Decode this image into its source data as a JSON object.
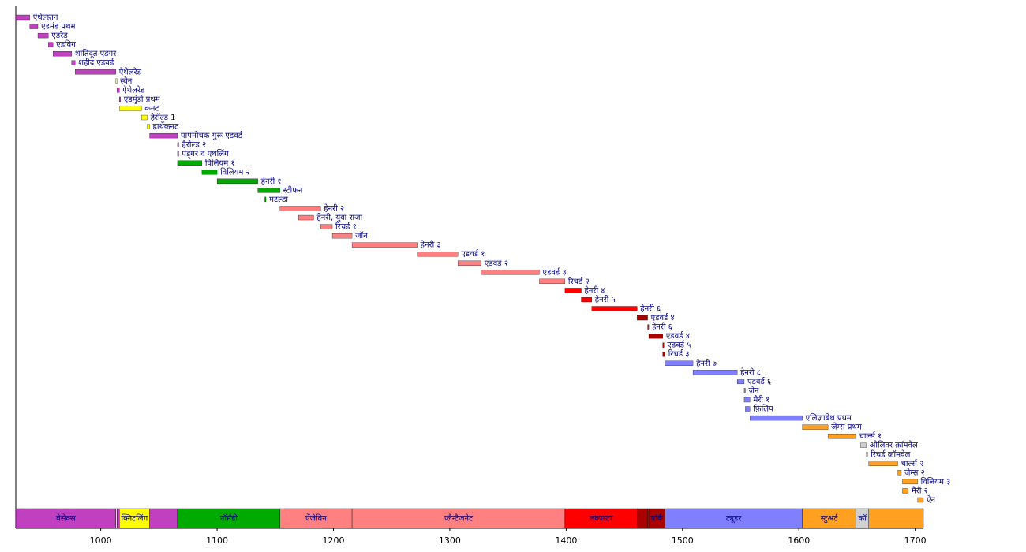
{
  "chart_data": {
    "type": "timeline",
    "xlim": [
      927,
      1707
    ],
    "xticks": [
      1000,
      1100,
      1200,
      1300,
      1400,
      1500,
      1600,
      1700
    ],
    "categories": [
      "ऐथेल्स्तन",
      "एडमंड प्रथम",
      "एडरेड",
      "एडविग",
      "शांतिदूत एडगर",
      "शहीद एडवर्ड",
      "ऐथेलरेड",
      "स्वेन",
      "ऐथेलरेड",
      "एडमुंडो प्रथम",
      "कनट",
      "हेरॉल्ड 1",
      "हार्थेकनट",
      "पापमोचक गुरू एडवर्ड",
      "हैरोल्ड २",
      "एड्गर द एथलिंग",
      "विलियम १",
      "विलियम २",
      "हेनरी १",
      "स्टीफन",
      "मटल्डा",
      "हेनरी २",
      "हेनरी, युवा राजा",
      "रिचर्ड १",
      "जॉन",
      "हेनरी ३",
      "एडवर्ड १",
      "एडवर्ड २",
      "एडवर्ड ३",
      "रिचर्ड २",
      "हेनरी ४",
      "हेनरी ५",
      "हेनरी ६",
      "एडवर्ड ४",
      "हेनरी ६",
      "एडवर्ड ४",
      "एडवर्ड ५",
      "रिचर्ड ३",
      "हेनरी ७",
      "हेनरी ८",
      "एडवर्ड ६",
      "जेन",
      "मैरी १",
      "फ़िलिप",
      "एलिज़ाबेथ प्रथम",
      "जेम्स प्रथम",
      "चार्ल्स १",
      "ओलिवर क्रॉमवेल",
      "रिचर्ड क्रॉमवेल",
      "चार्ल्स २",
      "जेम्स २",
      "विलियम ३",
      "मैरी २",
      "ऐन"
    ],
    "starts": [
      927,
      939,
      946,
      955,
      959,
      975,
      978,
      1013,
      1014,
      1016,
      1016,
      1035,
      1040,
      1042,
      1066,
      1066,
      1066,
      1087,
      1100,
      1135,
      1141,
      1154,
      1170,
      1189,
      1199,
      1216,
      1272,
      1307,
      1327,
      1377,
      1399,
      1413,
      1422,
      1461,
      1470,
      1471,
      1483,
      1483,
      1485,
      1509,
      1547,
      1553,
      1553,
      1554,
      1558,
      1603,
      1625,
      1653,
      1658,
      1660,
      1685,
      1689,
      1689,
      1702
    ],
    "ends": [
      939,
      946,
      955,
      959,
      975,
      978,
      1013,
      1014,
      1016,
      1016,
      1035,
      1040,
      1042,
      1066,
      1066,
      1066,
      1087,
      1100,
      1135,
      1154,
      1141,
      1189,
      1183,
      1199,
      1216,
      1272,
      1307,
      1327,
      1377,
      1399,
      1413,
      1422,
      1461,
      1470,
      1471,
      1483,
      1483,
      1485,
      1509,
      1547,
      1553,
      1553,
      1558,
      1558,
      1603,
      1625,
      1649,
      1658,
      1659,
      1685,
      1688,
      1702,
      1694,
      1707
    ],
    "colors": [
      "#c040c0",
      "#c040c0",
      "#c040c0",
      "#c040c0",
      "#c040c0",
      "#c040c0",
      "#c040c0",
      "#ffff00",
      "#c040c0",
      "#c040c0",
      "#ffff00",
      "#ffff00",
      "#ffff00",
      "#c040c0",
      "#c040c0",
      "#c040c0",
      "#00aa00",
      "#00aa00",
      "#00aa00",
      "#00aa00",
      "#00aa00",
      "#ff8080",
      "#ff8080",
      "#ff8080",
      "#ff8080",
      "#ff8080",
      "#ff8080",
      "#ff8080",
      "#ff8080",
      "#ff8080",
      "#ff0000",
      "#ff0000",
      "#ff0000",
      "#aa0000",
      "#ff0000",
      "#aa0000",
      "#aa0000",
      "#aa0000",
      "#8080ff",
      "#8080ff",
      "#8080ff",
      "#8080ff",
      "#8080ff",
      "#8080ff",
      "#8080ff",
      "#ffa020",
      "#ffa020",
      "#d0d0d0",
      "#d0d0d0",
      "#ffa020",
      "#ffa020",
      "#ffa020",
      "#ffa020",
      "#ffa020"
    ],
    "houses": {
      "names": [
        "वेसेक्स",
        null,
        null,
        "क्निटलिंग",
        null,
        "नॉर्मंडी",
        "ऐंजेविन",
        "प्लैन्टैजनेट",
        "लंकास्टर",
        null,
        null,
        "यॉर्क",
        "ट्यूडर",
        "स्टुअर्ट",
        "कॉ",
        null
      ],
      "starts": [
        927,
        1013,
        1014,
        1016,
        1042,
        1066,
        1154,
        1216,
        1399,
        1461,
        1470,
        1471,
        1485,
        1603,
        1649,
        1660
      ],
      "ends": [
        1013,
        1014,
        1016,
        1042,
        1066,
        1154,
        1216,
        1399,
        1461,
        1470,
        1471,
        1485,
        1603,
        1649,
        1660,
        1707
      ],
      "colors": [
        "#c040c0",
        "#ffff00",
        "#c040c0",
        "#ffff00",
        "#c040c0",
        "#00aa00",
        "#ff8080",
        "#ff8080",
        "#ff0000",
        "#aa0000",
        "#ff0000",
        "#aa0000",
        "#8080ff",
        "#ffa020",
        "#d0d0d0",
        "#ffa020"
      ]
    }
  }
}
